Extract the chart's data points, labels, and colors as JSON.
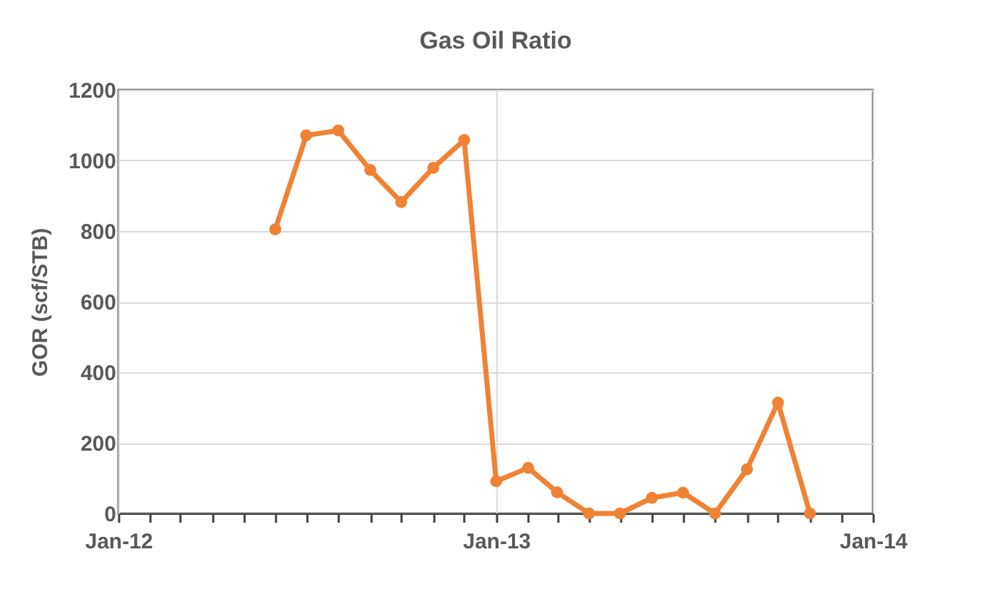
{
  "chart_data": {
    "type": "line",
    "title": "Gas Oil Ratio",
    "ylabel": "GOR (scf/STB)",
    "x": [
      "2012-06-01",
      "2012-07-01",
      "2012-08-01",
      "2012-09-01",
      "2012-10-01",
      "2012-11-01",
      "2012-12-01",
      "2013-01-01",
      "2013-02-01",
      "2013-03-01",
      "2013-04-01",
      "2013-05-01",
      "2013-06-01",
      "2013-07-01",
      "2013-08-01",
      "2013-09-01",
      "2013-10-01",
      "2013-11-01"
    ],
    "series": [
      {
        "color": "#f08234",
        "values": [
          805,
          1071,
          1085,
          973,
          882,
          979,
          1058,
          91,
          129,
          60,
          0,
          0,
          44,
          59,
          0,
          125,
          314,
          0
        ]
      }
    ],
    "xlim": [
      "2012-01-01",
      "2014-01-01"
    ],
    "xticks": [
      {
        "value": "2012-01-01",
        "label": "Jan-12"
      },
      {
        "value": "2012-02-01",
        "label": null
      },
      {
        "value": "2012-03-01",
        "label": null
      },
      {
        "value": "2012-04-01",
        "label": null
      },
      {
        "value": "2012-05-01",
        "label": null
      },
      {
        "value": "2012-06-01",
        "label": null
      },
      {
        "value": "2012-07-01",
        "label": null
      },
      {
        "value": "2012-08-01",
        "label": null
      },
      {
        "value": "2012-09-01",
        "label": null
      },
      {
        "value": "2012-10-01",
        "label": null
      },
      {
        "value": "2012-11-01",
        "label": null
      },
      {
        "value": "2012-12-01",
        "label": null
      },
      {
        "value": "2013-01-01",
        "label": "Jan-13"
      },
      {
        "value": "2013-02-01",
        "label": null
      },
      {
        "value": "2013-03-01",
        "label": null
      },
      {
        "value": "2013-04-01",
        "label": null
      },
      {
        "value": "2013-05-01",
        "label": null
      },
      {
        "value": "2013-06-01",
        "label": null
      },
      {
        "value": "2013-07-01",
        "label": null
      },
      {
        "value": "2013-08-01",
        "label": null
      },
      {
        "value": "2013-09-01",
        "label": null
      },
      {
        "value": "2013-10-01",
        "label": null
      },
      {
        "value": "2013-11-01",
        "label": null
      },
      {
        "value": "2013-12-01",
        "label": null
      },
      {
        "value": "2014-01-01",
        "label": "Jan-14"
      }
    ],
    "ylim": [
      0,
      1200
    ],
    "yticks": [
      0,
      200,
      400,
      600,
      800,
      1000,
      1200
    ],
    "grid": true,
    "marker": "circle",
    "line_style": "solid",
    "legend": false
  }
}
